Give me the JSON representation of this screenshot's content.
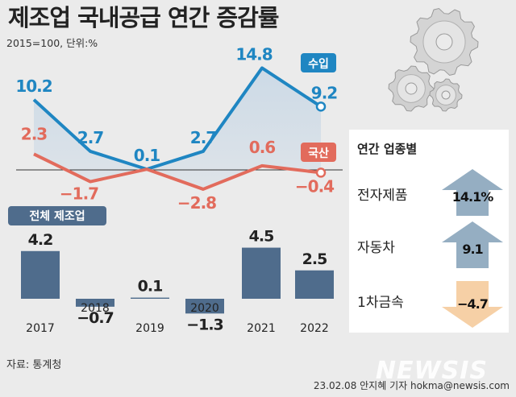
{
  "title": "제조업 국내공급 연간 증감률",
  "subtitle": "2015=100, 단위:%",
  "source": "자료: 통계청",
  "credit": "23.02.08 안지혜 기자 hokma@newsis.com",
  "logo": "NEWSIS",
  "colors": {
    "import": "#1f86c2",
    "domestic": "#e26b5c",
    "bar": "#4f6c8c",
    "up_arrow": "#95aec2",
    "down_arrow": "#f6d0a6"
  },
  "chart_data": [
    {
      "type": "line",
      "x": [
        "2017",
        "2018",
        "2019",
        "2020",
        "2021",
        "2022"
      ],
      "series": [
        {
          "name": "수입",
          "values": [
            10.2,
            2.7,
            0.1,
            2.7,
            14.8,
            9.2
          ],
          "color": "#1f86c2"
        },
        {
          "name": "국산",
          "values": [
            2.3,
            -1.7,
            0.1,
            -2.8,
            0.6,
            -0.4
          ],
          "color": "#e26b5c"
        }
      ],
      "value_labels": {
        "수입": [
          "10.2",
          "2.7",
          "0.1",
          "2.7",
          "14.8",
          "9.2"
        ],
        "국산": [
          "2.3",
          "−1.7",
          "",
          "−2.8",
          "0.6",
          "−0.4"
        ]
      },
      "zero_line": true,
      "area_fill_between_series": true
    },
    {
      "type": "bar",
      "title": "전체 제조업",
      "categories": [
        "2017",
        "2018",
        "2019",
        "2020",
        "2021",
        "2022"
      ],
      "values": [
        4.2,
        -0.7,
        0.1,
        -1.3,
        4.5,
        2.5
      ],
      "labels": [
        "4.2",
        "−0.7",
        "0.1",
        "−1.3",
        "4.5",
        "2.5"
      ]
    }
  ],
  "industry_panel": {
    "title": "연간 업종별",
    "items": [
      {
        "name": "전자제품",
        "value": 14.1,
        "label": "14.1%",
        "direction": "up"
      },
      {
        "name": "자동차",
        "value": 9.1,
        "label": "9.1",
        "direction": "up"
      },
      {
        "name": "1차금속",
        "value": -4.7,
        "label": "−4.7",
        "direction": "down"
      }
    ]
  }
}
